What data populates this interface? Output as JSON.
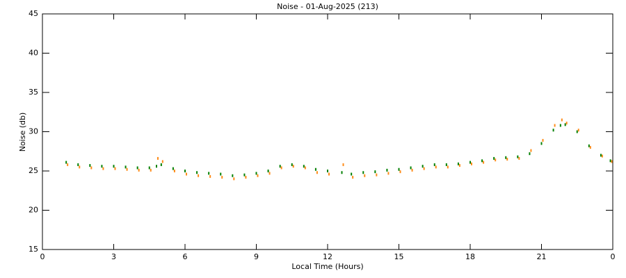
{
  "chart_data": {
    "type": "scatter",
    "title": "Noise - 01-Aug-2025 (213)",
    "xlabel": "Local Time (Hours)",
    "ylabel": "Noise (db)",
    "xlim": [
      0,
      24
    ],
    "xticks": [
      0,
      3,
      6,
      9,
      12,
      15,
      18,
      21,
      {
        "value": 24,
        "label": "0"
      }
    ],
    "ylim": [
      15,
      45
    ],
    "yticks": [
      15,
      20,
      25,
      30,
      35,
      40,
      45
    ],
    "x": [
      1.0,
      1.5,
      2.0,
      2.5,
      3.0,
      3.5,
      4.0,
      4.5,
      4.8,
      5.0,
      5.5,
      6.0,
      6.5,
      7.0,
      7.5,
      8.0,
      8.5,
      9.0,
      9.5,
      10.0,
      10.5,
      11.0,
      11.5,
      12.0,
      12.6,
      13.0,
      13.5,
      14.0,
      14.5,
      15.0,
      15.5,
      16.0,
      16.5,
      17.0,
      17.5,
      18.0,
      18.5,
      19.0,
      19.5,
      20.0,
      20.5,
      21.0,
      21.5,
      21.8,
      22.0,
      22.5,
      23.0,
      23.5,
      23.9
    ],
    "series": [
      {
        "name": "green",
        "color": "#008000",
        "values": [
          26.1,
          25.8,
          25.7,
          25.6,
          25.6,
          25.5,
          25.4,
          25.4,
          25.6,
          25.8,
          25.3,
          25.0,
          24.8,
          24.7,
          24.6,
          24.4,
          24.5,
          24.7,
          25.0,
          25.6,
          25.8,
          25.6,
          25.2,
          25.0,
          24.8,
          24.6,
          24.8,
          24.9,
          25.1,
          25.2,
          25.4,
          25.6,
          25.8,
          25.8,
          25.9,
          26.1,
          26.3,
          26.6,
          26.7,
          26.8,
          27.2,
          28.5,
          30.2,
          30.8,
          30.9,
          30.0,
          28.2,
          27.0,
          26.3
        ]
      },
      {
        "name": "orange",
        "color": "#ff8c1a",
        "values": [
          25.8,
          25.5,
          25.4,
          25.3,
          25.3,
          25.2,
          25.1,
          25.1,
          26.6,
          26.2,
          25.0,
          24.6,
          24.4,
          24.3,
          24.2,
          24.0,
          24.2,
          24.4,
          24.7,
          25.4,
          25.6,
          25.4,
          24.8,
          24.6,
          25.8,
          24.2,
          24.4,
          24.5,
          24.7,
          24.9,
          25.1,
          25.3,
          25.5,
          25.5,
          25.7,
          25.9,
          26.1,
          26.4,
          26.5,
          26.6,
          27.6,
          28.9,
          30.8,
          31.5,
          31.1,
          30.2,
          28.0,
          26.9,
          26.2
        ]
      }
    ]
  }
}
